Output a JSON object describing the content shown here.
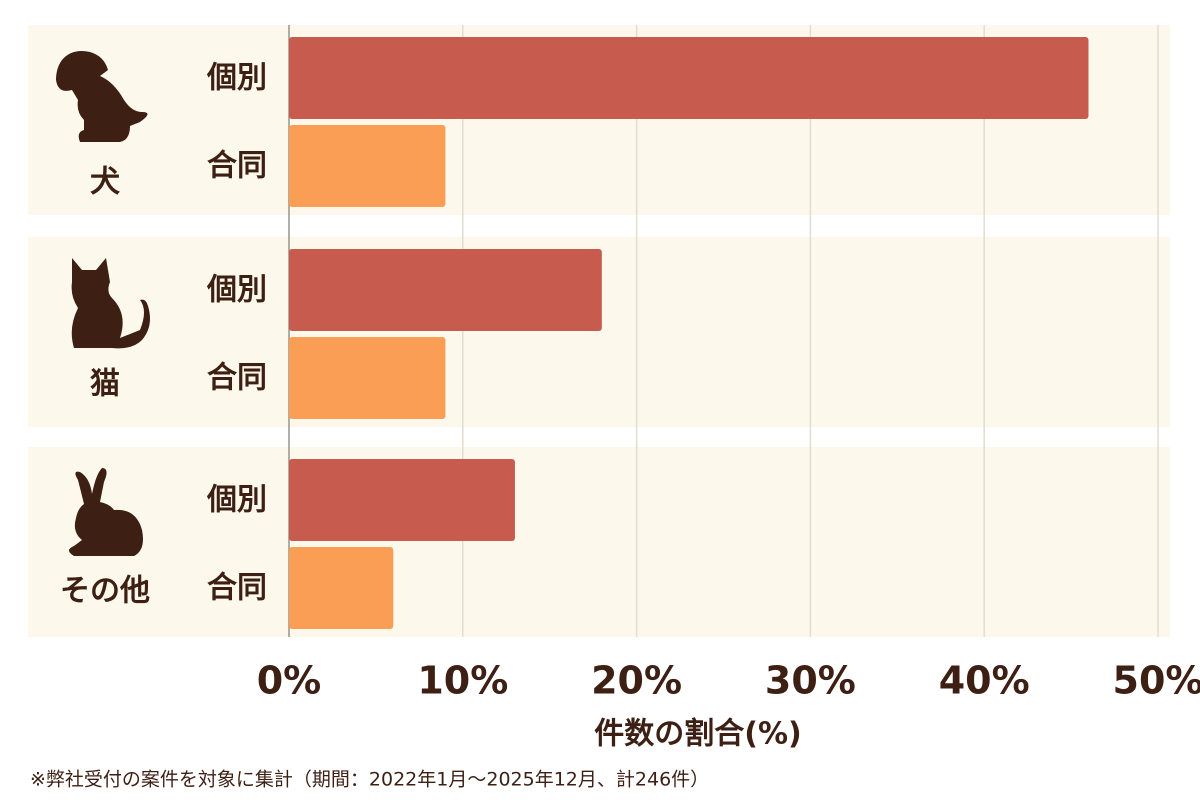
{
  "chart_data": {
    "type": "bar",
    "orientation": "horizontal",
    "categories": [
      "犬",
      "猫",
      "その他"
    ],
    "series": [
      {
        "name": "個別",
        "color": "#c65b4e",
        "values": [
          46,
          18,
          13
        ]
      },
      {
        "name": "合同",
        "color": "#fb9e55",
        "values": [
          9,
          9,
          6
        ]
      }
    ],
    "xlim": [
      0,
      50
    ],
    "xticks": [
      {
        "value": 0,
        "label": "0%"
      },
      {
        "value": 10,
        "label": "10%"
      },
      {
        "value": 20,
        "label": "20%"
      },
      {
        "value": 30,
        "label": "30%"
      },
      {
        "value": 40,
        "label": "40%"
      },
      {
        "value": 50,
        "label": "50%"
      }
    ],
    "xlabel": "件数の割合(%)",
    "note": "※弊社受付の案件を対象に集計（期間：2022年1月～2025年12月、計246件）",
    "grid": true
  }
}
